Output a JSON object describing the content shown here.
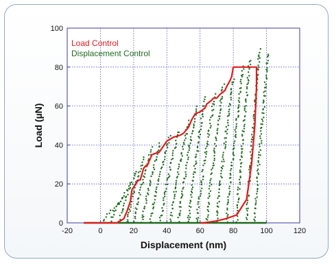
{
  "chart_data": {
    "type": "scatter",
    "title": "",
    "xlabel": "Displacement (nm)",
    "ylabel": "Load (µN)",
    "xlim": [
      -20,
      120
    ],
    "ylim": [
      0,
      100
    ],
    "x_ticks": [
      -20,
      0,
      20,
      40,
      60,
      80,
      100,
      120
    ],
    "y_ticks": [
      0,
      20,
      40,
      60,
      80,
      100
    ],
    "grid": true,
    "legend_position": "top-left",
    "series": [
      {
        "name": "Load Control",
        "color": "#e41a1c",
        "style": "line",
        "x": [
          -10,
          10,
          14,
          16,
          18,
          19,
          22,
          23,
          24,
          26,
          27,
          28,
          29,
          30,
          31,
          34,
          35,
          36,
          40,
          42,
          44,
          48,
          50,
          53,
          55,
          57,
          60,
          63,
          64,
          67,
          68,
          70,
          72,
          75,
          76,
          78,
          79,
          80,
          81,
          83,
          86,
          88,
          92,
          94,
          94,
          93,
          91,
          88,
          82,
          75,
          70,
          62,
          60
        ],
        "y": [
          0,
          0,
          2,
          6,
          11,
          17,
          21,
          22,
          22,
          28,
          29,
          29,
          31,
          33,
          35,
          36,
          36,
          37,
          42,
          43,
          44,
          45,
          46,
          49,
          53,
          56,
          57,
          59,
          61,
          63,
          64,
          64,
          66,
          68,
          70,
          73,
          75,
          80,
          80,
          80,
          80,
          80,
          80,
          80,
          70,
          50,
          30,
          12,
          4,
          2,
          1,
          0,
          0
        ]
      },
      {
        "name": "Displacement Control",
        "color": "#1f6b1f",
        "style": "markers",
        "segments": [
          {
            "x0": 2,
            "y0": 1,
            "x1": 15,
            "y1": 14
          },
          {
            "x0": 6,
            "y0": 0,
            "x1": 18,
            "y1": 20
          },
          {
            "x0": 11,
            "y0": 0,
            "x1": 22,
            "y1": 27
          },
          {
            "x0": 16,
            "y0": 0,
            "x1": 26,
            "y1": 33
          },
          {
            "x0": 20,
            "y0": 0,
            "x1": 31,
            "y1": 39
          },
          {
            "x0": 25,
            "y0": 0,
            "x1": 36,
            "y1": 41
          },
          {
            "x0": 30,
            "y0": 0,
            "x1": 42,
            "y1": 45
          },
          {
            "x0": 36,
            "y0": 0,
            "x1": 47,
            "y1": 47
          },
          {
            "x0": 42,
            "y0": 0,
            "x1": 53,
            "y1": 52
          },
          {
            "x0": 47,
            "y0": 0,
            "x1": 58,
            "y1": 60
          },
          {
            "x0": 53,
            "y0": 0,
            "x1": 63,
            "y1": 64
          },
          {
            "x0": 58,
            "y0": 0,
            "x1": 69,
            "y1": 66
          },
          {
            "x0": 64,
            "y0": 0,
            "x1": 74,
            "y1": 71
          },
          {
            "x0": 70,
            "y0": 0,
            "x1": 80,
            "y1": 74
          },
          {
            "x0": 76,
            "y0": 0,
            "x1": 86,
            "y1": 80
          },
          {
            "x0": 82,
            "y0": 0,
            "x1": 90,
            "y1": 84
          },
          {
            "x0": 88,
            "y0": 0,
            "x1": 96,
            "y1": 89
          },
          {
            "x0": 93,
            "y0": 0,
            "x1": 101,
            "y1": 87
          }
        ]
      }
    ]
  }
}
